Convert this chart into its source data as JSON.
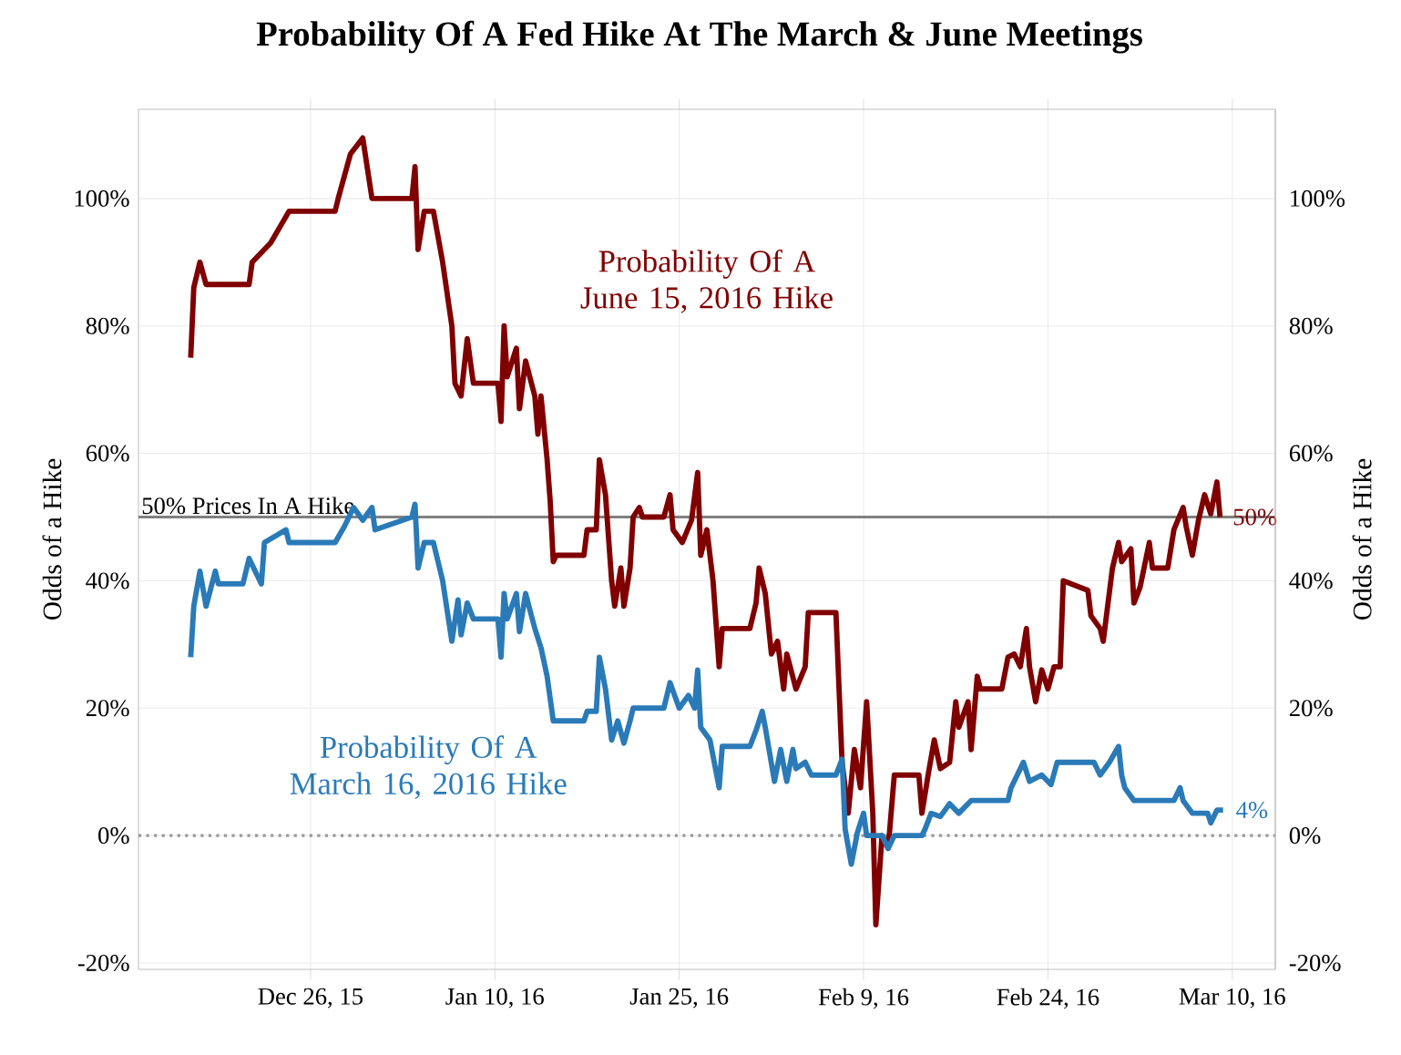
{
  "chart_data": {
    "type": "line",
    "title": "Probability Of A Fed Hike At The March & June Meetings",
    "ylabel": "Odds of a Hike",
    "y2label": "Odds of a Hike",
    "xlim": [
      "2015-12-12",
      "2016-03-13T12:00"
    ],
    "xticks": [
      {
        "value": "2015-12-26",
        "label": "Dec 26, 15"
      },
      {
        "value": "2016-01-10",
        "label": "Jan 10, 16"
      },
      {
        "value": "2016-01-25",
        "label": "Jan 25, 16"
      },
      {
        "value": "2016-02-09",
        "label": "Feb 9, 16"
      },
      {
        "value": "2016-02-24",
        "label": "Feb 24, 16"
      },
      {
        "value": "2016-03-10",
        "label": "Mar 10, 16"
      }
    ],
    "ylim": [
      -21,
      114
    ],
    "yticks": [
      {
        "value": -20,
        "label": "-20%"
      },
      {
        "value": 0,
        "label": "0%"
      },
      {
        "value": 20,
        "label": "20%"
      },
      {
        "value": 40,
        "label": "40%"
      },
      {
        "value": 60,
        "label": "60%"
      },
      {
        "value": 80,
        "label": "80%"
      },
      {
        "value": 100,
        "label": "100%"
      }
    ],
    "y2lim": [
      -21,
      114
    ],
    "y2ticks": [
      {
        "value": -20,
        "label": "-20%"
      },
      {
        "value": 0,
        "label": "0%"
      },
      {
        "value": 20,
        "label": "20%"
      },
      {
        "value": 40,
        "label": "40%"
      },
      {
        "value": 60,
        "label": "60%"
      },
      {
        "value": 80,
        "label": "80%"
      },
      {
        "value": 100,
        "label": "100%"
      }
    ],
    "grid": true,
    "series": [
      {
        "name": "Probability Of A June 15, 2016 Hike",
        "color": "#800000",
        "x": [
          "2015-12-16T06:00",
          "2015-12-16T12:00",
          "2015-12-17T00:00",
          "2015-12-17T12:00",
          "2015-12-21T00:00",
          "2015-12-21T06:00",
          "2015-12-22T18:00",
          "2015-12-24T06:00",
          "2015-12-28T00:00",
          "2015-12-28T06:00",
          "2015-12-29T06:00",
          "2015-12-30T06:00",
          "2015-12-31T00:00",
          "2016-01-03T06:00",
          "2016-01-03T12:00",
          "2016-01-03T18:00",
          "2016-01-04T06:00",
          "2016-01-05T00:00",
          "2016-01-05T18:00",
          "2016-01-06T12:00",
          "2016-01-06T18:00",
          "2016-01-07T06:00",
          "2016-01-07T18:00",
          "2016-01-08T06:00",
          "2016-01-10T06:00",
          "2016-01-10T12:00",
          "2016-01-10T18:00",
          "2016-01-11T00:00",
          "2016-01-11T18:00",
          "2016-01-12T00:00",
          "2016-01-12T12:00",
          "2016-01-13T06:00",
          "2016-01-13T12:00",
          "2016-01-13T18:00",
          "2016-01-14T06:00",
          "2016-01-14T12:00",
          "2016-01-14T18:00",
          "2016-01-15T00:00",
          "2016-01-17T06:00",
          "2016-01-17T12:00",
          "2016-01-18T06:00",
          "2016-01-18T12:00",
          "2016-01-19T00:00",
          "2016-01-19T12:00",
          "2016-01-19T18:00",
          "2016-01-20T06:00",
          "2016-01-20T12:00",
          "2016-01-21T00:00",
          "2016-01-21T06:00",
          "2016-01-21T18:00",
          "2016-01-22T00:00",
          "2016-01-23T18:00",
          "2016-01-24T06:00",
          "2016-01-24T12:00",
          "2016-01-25T06:00",
          "2016-01-26T00:00",
          "2016-01-26T12:00",
          "2016-01-26T18:00",
          "2016-01-27T06:00",
          "2016-01-27T18:00",
          "2016-01-28T06:00",
          "2016-01-28T12:00",
          "2016-01-30T18:00",
          "2016-01-31T06:00",
          "2016-01-31T12:00",
          "2016-02-01T00:00",
          "2016-02-01T12:00",
          "2016-02-02T00:00",
          "2016-02-02T12:00",
          "2016-02-02T18:00",
          "2016-02-03T12:00",
          "2016-02-04T06:00",
          "2016-02-04T12:00",
          "2016-02-06T18:00",
          "2016-02-07T06:00",
          "2016-02-07T18:00",
          "2016-02-08T06:00",
          "2016-02-08T18:00",
          "2016-02-09T06:00",
          "2016-02-09T18:00",
          "2016-02-10T00:00",
          "2016-02-10T12:00",
          "2016-02-11T00:00",
          "2016-02-11T12:00",
          "2016-02-13T12:00",
          "2016-02-13T18:00",
          "2016-02-14T06:00",
          "2016-02-14T18:00",
          "2016-02-15T06:00",
          "2016-02-16T00:00",
          "2016-02-16T12:00",
          "2016-02-16T18:00",
          "2016-02-17T12:00",
          "2016-02-17T18:00",
          "2016-02-18T06:00",
          "2016-02-18T12:00",
          "2016-02-20T06:00",
          "2016-02-20T18:00",
          "2016-02-21T06:00",
          "2016-02-21T18:00",
          "2016-02-22T06:00",
          "2016-02-22T12:00",
          "2016-02-23T00:00",
          "2016-02-23T12:00",
          "2016-02-24T00:00",
          "2016-02-24T12:00",
          "2016-02-25T00:00",
          "2016-02-25T06:00",
          "2016-02-27T06:00",
          "2016-02-27T12:00",
          "2016-02-28T06:00",
          "2016-02-28T12:00",
          "2016-02-29T06:00",
          "2016-02-29T18:00",
          "2016-03-01T00:00",
          "2016-03-01T18:00",
          "2016-03-02T00:00",
          "2016-03-02T12:00",
          "2016-03-03T06:00",
          "2016-03-03T12:00",
          "2016-03-04T18:00",
          "2016-03-05T06:00",
          "2016-03-06T00:00",
          "2016-03-06T06:00",
          "2016-03-06T18:00",
          "2016-03-07T06:00",
          "2016-03-07T18:00",
          "2016-03-08T06:00",
          "2016-03-08T18:00",
          "2016-03-09T00:00"
        ],
        "values": [
          75,
          86,
          90,
          86.5,
          86.5,
          90,
          93,
          98,
          98,
          100,
          107,
          109.5,
          100,
          100,
          105,
          92,
          98,
          98,
          90,
          80,
          71,
          69,
          78,
          71,
          71,
          65,
          80,
          72,
          76.5,
          67,
          74.5,
          69,
          63,
          69,
          59,
          52.5,
          43,
          44,
          44,
          48,
          48,
          59,
          53.5,
          40,
          36,
          42,
          36,
          42,
          50,
          51.5,
          50,
          50,
          53.5,
          48,
          46,
          49.5,
          57,
          44,
          48,
          40,
          26.5,
          32.5,
          32.5,
          36.5,
          42,
          38,
          28.5,
          30.5,
          23,
          28.5,
          23,
          26.5,
          35,
          35,
          11.5,
          3.5,
          13.5,
          7.5,
          21,
          3.5,
          -14,
          0,
          -2,
          9.5,
          9.5,
          3.5,
          9.5,
          15,
          10.5,
          11.5,
          21,
          17,
          21,
          13.5,
          25,
          23,
          23,
          28,
          28.5,
          26.5,
          32.5,
          26.5,
          21,
          26,
          23,
          26.5,
          26.5,
          40,
          38.5,
          34.5,
          32.5,
          30.5,
          42,
          46,
          43,
          45,
          36.5,
          39,
          46,
          42,
          42,
          48,
          51.5,
          48.5,
          44,
          49.5,
          53.5,
          50.5,
          55.5,
          50
        ]
      },
      {
        "name": "Probability Of A March 16, 2016 Hike",
        "color": "#2a7ab8",
        "x": [
          "2015-12-16T06:00",
          "2015-12-16T12:00",
          "2015-12-17T00:00",
          "2015-12-17T12:00",
          "2015-12-18T06:00",
          "2015-12-18T12:00",
          "2015-12-20T12:00",
          "2015-12-21T00:00",
          "2015-12-22T00:00",
          "2015-12-22T06:00",
          "2015-12-24T00:00",
          "2015-12-24T06:00",
          "2015-12-28T00:00",
          "2015-12-28T18:00",
          "2015-12-29T12:00",
          "2015-12-30T06:00",
          "2015-12-31T00:00",
          "2015-12-31T06:00",
          "2016-01-03T06:00",
          "2016-01-03T12:00",
          "2016-01-03T18:00",
          "2016-01-04T06:00",
          "2016-01-05T00:00",
          "2016-01-05T18:00",
          "2016-01-06T12:00",
          "2016-01-07T00:00",
          "2016-01-07T06:00",
          "2016-01-07T18:00",
          "2016-01-08T06:00",
          "2016-01-10T06:00",
          "2016-01-10T12:00",
          "2016-01-10T18:00",
          "2016-01-11T00:00",
          "2016-01-11T18:00",
          "2016-01-12T00:00",
          "2016-01-12T12:00",
          "2016-01-13T06:00",
          "2016-01-13T18:00",
          "2016-01-14T06:00",
          "2016-01-14T18:00",
          "2016-01-17T06:00",
          "2016-01-17T12:00",
          "2016-01-18T06:00",
          "2016-01-18T12:00",
          "2016-01-19T00:00",
          "2016-01-19T12:00",
          "2016-01-20T00:00",
          "2016-01-20T12:00",
          "2016-01-21T00:00",
          "2016-01-21T06:00",
          "2016-01-23T18:00",
          "2016-01-24T06:00",
          "2016-01-25T00:00",
          "2016-01-25T18:00",
          "2016-01-26T06:00",
          "2016-01-26T12:00",
          "2016-01-26T18:00",
          "2016-01-27T12:00",
          "2016-01-28T06:00",
          "2016-01-28T12:00",
          "2016-01-30T18:00",
          "2016-01-31T06:00",
          "2016-01-31T18:00",
          "2016-02-01T00:00",
          "2016-02-01T18:00",
          "2016-02-02T06:00",
          "2016-02-02T18:00",
          "2016-02-03T06:00",
          "2016-02-03T12:00",
          "2016-02-04T06:00",
          "2016-02-04T18:00",
          "2016-02-06T18:00",
          "2016-02-07T06:00",
          "2016-02-07T12:00",
          "2016-02-08T00:00",
          "2016-02-08T12:00",
          "2016-02-09T00:00",
          "2016-02-09T06:00",
          "2016-02-10T12:00",
          "2016-02-11T00:00",
          "2016-02-11T12:00",
          "2016-02-13T18:00",
          "2016-02-14T00:00",
          "2016-02-14T12:00",
          "2016-02-15T06:00",
          "2016-02-16T00:00",
          "2016-02-16T18:00",
          "2016-02-17T18:00",
          "2016-02-20T18:00",
          "2016-02-21T00:00",
          "2016-02-22T00:00",
          "2016-02-22T12:00",
          "2016-02-23T12:00",
          "2016-02-24T06:00",
          "2016-02-24T18:00",
          "2016-02-27T18:00",
          "2016-02-28T06:00",
          "2016-02-29T00:00",
          "2016-02-29T18:00",
          "2016-03-01T00:00",
          "2016-03-01T06:00",
          "2016-03-02T00:00",
          "2016-03-05T06:00",
          "2016-03-05T18:00",
          "2016-03-06T00:00",
          "2016-03-06T18:00",
          "2016-03-08T00:00",
          "2016-03-08T06:00",
          "2016-03-08T18:00",
          "2016-03-09T06:00"
        ],
        "values": [
          28,
          36,
          41.5,
          36,
          41.5,
          39.5,
          39.5,
          43.5,
          39.5,
          46,
          48,
          46,
          46,
          48.5,
          51.5,
          49.5,
          51.5,
          48,
          50,
          52,
          42,
          46,
          46,
          40,
          30.5,
          37,
          31.5,
          36.5,
          34,
          34,
          28,
          38,
          34,
          38,
          32,
          38,
          32.5,
          29.5,
          25,
          18,
          18,
          19.5,
          19.5,
          28,
          23,
          15,
          18,
          14.5,
          18,
          20,
          20,
          24,
          20,
          22,
          20,
          26,
          17,
          15,
          7.5,
          14,
          14,
          16.5,
          19.5,
          17,
          8.5,
          13.5,
          8.5,
          13.5,
          10.5,
          11.5,
          9.5,
          9.5,
          12,
          1,
          -4.5,
          0.5,
          3.5,
          0,
          0,
          -2,
          0,
          0,
          1,
          3.5,
          3,
          5,
          3.5,
          5.5,
          5.5,
          7.5,
          11.5,
          8.5,
          9.5,
          8,
          11.5,
          11.5,
          9.5,
          11.5,
          14,
          9.5,
          7.5,
          5.5,
          5.5,
          7.5,
          5.5,
          3.5,
          3.5,
          2,
          4,
          4
        ]
      }
    ],
    "ref_lines": [
      {
        "axis": "y",
        "value": 50,
        "label": "50% Prices In A Hike",
        "color": "#808080",
        "line_style": "solid"
      },
      {
        "axis": "y",
        "value": 0,
        "color": "#999999",
        "line_style": "dotted"
      }
    ],
    "annotations": [
      {
        "text": "50%",
        "x": "2016-03-09",
        "y": 50
      },
      {
        "text": "4%",
        "x": "2016-03-09T06:00",
        "y": 4
      }
    ]
  }
}
